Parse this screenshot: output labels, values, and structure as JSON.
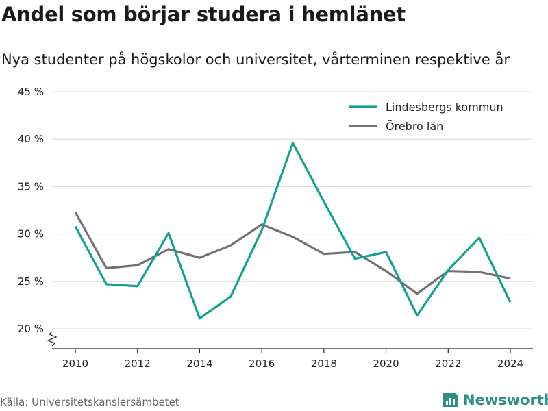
{
  "title": "Andel som börjar studera i hemlänet",
  "subtitle": "Nya studenter på högskolor och universitet, vårterminen respektive år",
  "source": "Källa: Universitetskanslersämbetet",
  "brand": {
    "name": "Newsworthy",
    "icon": "newsworthy-logo-icon"
  },
  "chart_data": {
    "type": "line",
    "x": [
      2010,
      2011,
      2012,
      2013,
      2014,
      2015,
      2016,
      2017,
      2018,
      2019,
      2020,
      2021,
      2022,
      2023,
      2024
    ],
    "x_ticks": [
      2010,
      2012,
      2014,
      2016,
      2018,
      2020,
      2022,
      2024
    ],
    "x_tick_labels": [
      "2010",
      "2012",
      "2014",
      "2016",
      "2018",
      "2020",
      "2022",
      "2024"
    ],
    "y_ticks": [
      20,
      25,
      30,
      35,
      40,
      45
    ],
    "y_tick_labels": [
      "20 %",
      "25 %",
      "30 %",
      "35 %",
      "40 %",
      "45 %"
    ],
    "ylim": [
      20,
      45
    ],
    "y_axis_break": true,
    "grid": "horizontal",
    "legend_position": "top-right",
    "series": [
      {
        "name": "Lindesbergs kommun",
        "color": "#14a091",
        "values": [
          30.8,
          24.7,
          24.5,
          30.1,
          21.1,
          23.4,
          30.4,
          39.6,
          33.4,
          27.4,
          28.1,
          21.4,
          26.2,
          29.6,
          22.8
        ]
      },
      {
        "name": "Örebro län",
        "color": "#717177",
        "values": [
          32.3,
          26.4,
          26.7,
          28.4,
          27.5,
          28.8,
          31.0,
          29.7,
          27.9,
          28.1,
          26.1,
          23.7,
          26.1,
          26.0,
          25.3
        ]
      }
    ]
  }
}
